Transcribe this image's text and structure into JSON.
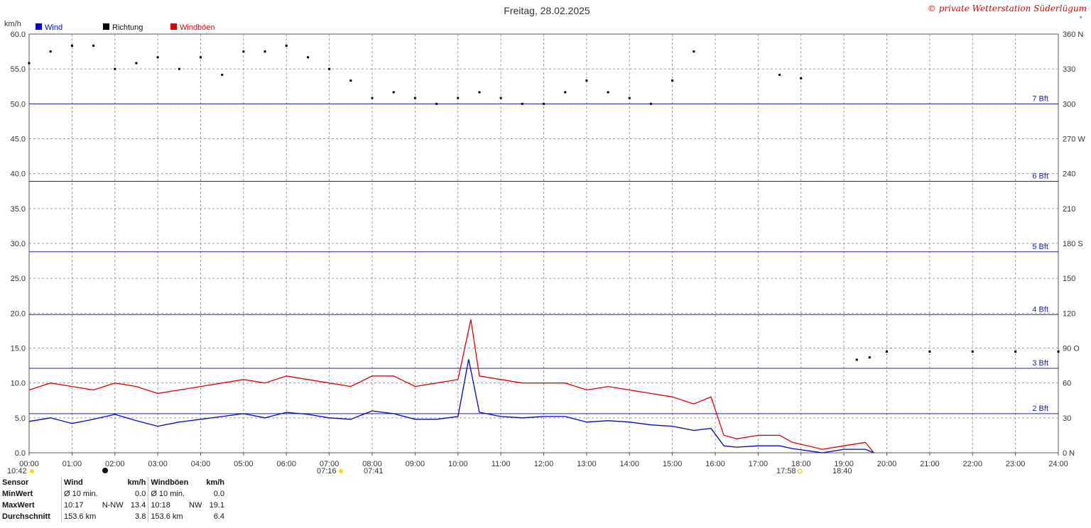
{
  "title": "Freitag, 28.02.2025",
  "copyright": "© private Wetterstation Süderlügum",
  "corner_mark": "˚",
  "y_unit_label": "km/h",
  "legend": [
    {
      "label": "Wind",
      "color": "#0000cc"
    },
    {
      "label": "Richtung",
      "color": "#000000"
    },
    {
      "label": "Windböen",
      "color": "#dd0000"
    }
  ],
  "sun_markers": {
    "left_time": "10:42",
    "sunrise": "07:16",
    "sunrise2": "07:41",
    "sunset": "17:58",
    "sunset2": "18:40"
  },
  "stats": {
    "headers": [
      "Sensor",
      "Wind",
      "km/h",
      "Windböen",
      "km/h"
    ],
    "rows": [
      {
        "label": "MinWert",
        "w1": "Ø 10 min.",
        "w2": "",
        "w3": "0.0",
        "g1": "Ø 10 min.",
        "g2": "",
        "g3": "0.0"
      },
      {
        "label": "MaxWert",
        "w1": "10:17",
        "w2": "N-NW",
        "w3": "13.4",
        "g1": "10:18",
        "g2": "NW",
        "g3": "19.1"
      },
      {
        "label": "Durchschnitt",
        "w1": "153.6 km",
        "w2": "",
        "w3": "3.8",
        "g1": "153.6 km",
        "g2": "",
        "g3": "6.4"
      }
    ]
  },
  "chart_data": {
    "type": "line",
    "title": "Freitag, 28.02.2025",
    "ylabel": "km/h",
    "ylim": [
      0,
      60
    ],
    "y_ticks": [
      "0.0",
      "5.0",
      "10.0",
      "15.0",
      "20.0",
      "25.0",
      "30.0",
      "35.0",
      "40.0",
      "45.0",
      "50.0",
      "55.0",
      "60.0"
    ],
    "y2lim": [
      0,
      360
    ],
    "y2_ticks": [
      "0 N",
      "30",
      "60",
      "90 O",
      "120",
      "150",
      "180 S",
      "210",
      "240",
      "270 W",
      "300",
      "330",
      "360 N"
    ],
    "xlim": [
      0,
      24
    ],
    "x_ticks": [
      "00:00",
      "01:00",
      "02:00",
      "03:00",
      "04:00",
      "05:00",
      "06:00",
      "07:00",
      "08:00",
      "09:00",
      "10:00",
      "11:00",
      "12:00",
      "13:00",
      "14:00",
      "15:00",
      "16:00",
      "17:00",
      "18:00",
      "19:00",
      "20:00",
      "21:00",
      "22:00",
      "23:00",
      "24:00"
    ],
    "grid": true,
    "legend_position": "top-left",
    "beaufort_lines": [
      {
        "label": "2 Bft",
        "value": 5.6
      },
      {
        "label": "3 Bft",
        "value": 12.1
      },
      {
        "label": "4 Bft",
        "value": 19.8
      },
      {
        "label": "5 Bft",
        "value": 28.8
      },
      {
        "label": "6 Bft",
        "value": 38.9
      },
      {
        "label": "7 Bft",
        "value": 50.0
      }
    ],
    "series": [
      {
        "name": "Wind",
        "color": "#0000cc",
        "axis": "left",
        "x": [
          0,
          0.5,
          1,
          1.5,
          2,
          2.5,
          3,
          3.5,
          4,
          4.5,
          5,
          5.5,
          6,
          6.5,
          7,
          7.5,
          8,
          8.5,
          9,
          9.5,
          10,
          10.25,
          10.5,
          11,
          11.5,
          12,
          12.5,
          13,
          13.5,
          14,
          14.5,
          15,
          15.5,
          15.9,
          16.2,
          16.5,
          17,
          17.5,
          17.8,
          18.5,
          19,
          19.5,
          19.7
        ],
        "y": [
          4.5,
          5,
          4.2,
          4.8,
          5.5,
          4.6,
          3.8,
          4.4,
          4.8,
          5.2,
          5.6,
          5,
          5.8,
          5.5,
          5,
          4.8,
          6,
          5.6,
          4.8,
          4.8,
          5.2,
          13.4,
          5.8,
          5.2,
          5,
          5.2,
          5.2,
          4.4,
          4.6,
          4.4,
          4,
          3.8,
          3.2,
          3.5,
          1,
          0.8,
          1,
          1,
          0.6,
          0,
          0.5,
          0.5,
          0
        ]
      },
      {
        "name": "Windböen",
        "color": "#dd0000",
        "axis": "left",
        "x": [
          0,
          0.5,
          1,
          1.5,
          2,
          2.5,
          3,
          3.5,
          4,
          4.5,
          5,
          5.5,
          6,
          6.5,
          7,
          7.5,
          8,
          8.5,
          9,
          9.5,
          10,
          10.3,
          10.5,
          11,
          11.5,
          12,
          12.5,
          13,
          13.5,
          14,
          14.5,
          15,
          15.5,
          15.9,
          16.2,
          16.5,
          17,
          17.5,
          17.8,
          18.5,
          19,
          19.5,
          19.7
        ],
        "y": [
          9,
          10,
          9.5,
          9,
          10,
          9.5,
          8.5,
          9,
          9.5,
          10,
          10.5,
          10,
          11,
          10.5,
          10,
          9.5,
          11,
          11,
          9.5,
          10,
          10.5,
          19.1,
          11,
          10.5,
          10,
          10,
          10,
          9,
          9.5,
          9,
          8.5,
          8,
          7,
          8,
          2.5,
          2,
          2.5,
          2.5,
          1.5,
          0.5,
          1,
          1.5,
          0
        ]
      },
      {
        "name": "Richtung",
        "color": "#000000",
        "axis": "right",
        "style": "scatter",
        "x": [
          0,
          0.5,
          1,
          1.5,
          2,
          2.5,
          3,
          3.5,
          4,
          4.5,
          5,
          5.5,
          6,
          6.5,
          7,
          7.5,
          8,
          8.5,
          9,
          9.5,
          10,
          10.5,
          11,
          11.5,
          12,
          12.5,
          13,
          13.5,
          14,
          14.5,
          15,
          15.5,
          17.5,
          18,
          19.3,
          19.6,
          20,
          21,
          22,
          23,
          24
        ],
        "y": [
          335,
          345,
          350,
          350,
          330,
          335,
          340,
          330,
          340,
          325,
          345,
          345,
          350,
          340,
          330,
          320,
          305,
          310,
          305,
          300,
          305,
          310,
          305,
          300,
          300,
          310,
          320,
          310,
          305,
          300,
          320,
          345,
          325,
          322,
          80,
          82,
          87,
          87,
          87,
          87,
          87
        ]
      }
    ]
  }
}
